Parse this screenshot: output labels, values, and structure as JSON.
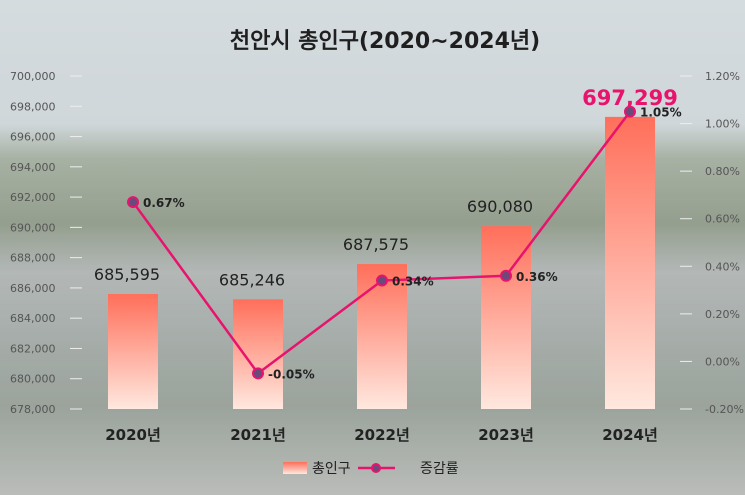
{
  "chart_data": {
    "type": "bar+line",
    "title": "천안시 총인구(2020~2024년)",
    "categories": [
      "2020년",
      "2021년",
      "2022년",
      "2023년",
      "2024년"
    ],
    "series": [
      {
        "name": "총인구",
        "type": "bar",
        "axis": "left",
        "values": [
          685595,
          685246,
          687575,
          690080,
          697299
        ],
        "labels": [
          "685,595",
          "685,246",
          "687,575",
          "690,080",
          "697,299"
        ]
      },
      {
        "name": "증감률",
        "type": "line",
        "axis": "right",
        "values": [
          0.67,
          -0.05,
          0.34,
          0.36,
          1.05
        ],
        "labels": [
          "0.67%",
          "-0.05%",
          "0.34%",
          "0.36%",
          "1.05%"
        ]
      }
    ],
    "left_axis": {
      "range": [
        678000,
        700000
      ],
      "ticks": [
        "678,000",
        "680,000",
        "682,000",
        "684,000",
        "686,000",
        "688,000",
        "690,000",
        "692,000",
        "694,000",
        "696,000",
        "698,000",
        "700,000"
      ]
    },
    "right_axis": {
      "range": [
        -0.2,
        1.2
      ],
      "ticks": [
        "-0.20%",
        "0.00%",
        "0.20%",
        "0.40%",
        "0.60%",
        "0.80%",
        "1.00%",
        "1.20%"
      ]
    },
    "legend": "bottom",
    "colors": {
      "bar_top": "#ff6f5a",
      "bar_bottom": "#ffe6dc",
      "line": "#e8136c",
      "marker": "#6a4a7a",
      "highlight": "#e8136c"
    }
  }
}
